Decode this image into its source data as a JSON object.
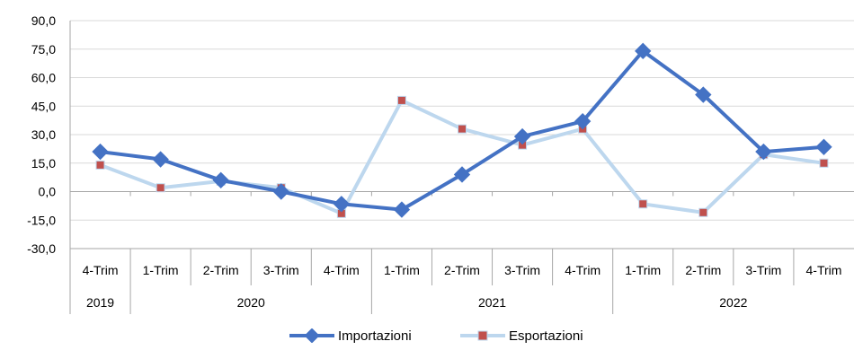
{
  "chart_data": {
    "type": "line",
    "categories": [
      "4-Trim",
      "1-Trim",
      "2-Trim",
      "3-Trim",
      "4-Trim",
      "1-Trim",
      "2-Trim",
      "3-Trim",
      "4-Trim",
      "1-Trim",
      "2-Trim",
      "3-Trim",
      "4-Trim"
    ],
    "year_groups": [
      {
        "label": "2019",
        "count": 1
      },
      {
        "label": "2020",
        "count": 4
      },
      {
        "label": "2021",
        "count": 4
      },
      {
        "label": "2022",
        "count": 4
      }
    ],
    "series": [
      {
        "name": "Importazioni",
        "color": "#4472c4",
        "values": [
          21.0,
          17.0,
          6.0,
          0.0,
          -6.5,
          -9.5,
          9.0,
          29.0,
          37.0,
          74.0,
          51.0,
          21.0,
          23.5
        ]
      },
      {
        "name": "Esportazioni",
        "color": "#bdd7ee",
        "marker_color": "#c0504d",
        "values": [
          14.0,
          2.0,
          5.5,
          2.0,
          -11.5,
          48.0,
          33.0,
          24.5,
          33.0,
          -6.5,
          -11.0,
          19.5,
          15.0
        ]
      }
    ],
    "ylim": [
      -30,
      90
    ],
    "yticks": [
      "90,0",
      "75,0",
      "60,0",
      "45,0",
      "30,0",
      "15,0",
      "0,0",
      "-15,0",
      "-30,0"
    ],
    "ytick_values": [
      90,
      75,
      60,
      45,
      30,
      15,
      0,
      -15,
      -30
    ],
    "grid": true,
    "legend_position": "bottom"
  },
  "legend": {
    "series1": "Importazioni",
    "series2": "Esportazioni"
  }
}
